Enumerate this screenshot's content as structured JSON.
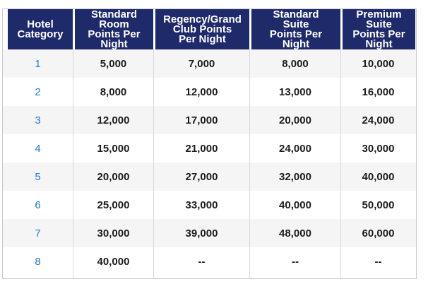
{
  "chart_data": {
    "type": "table",
    "title": "Hotel award points per night by category",
    "columns": [
      "Hotel\nCategory",
      "Standard\nRoom\nPoints Per\nNight",
      "Regency/Grand\nClub Points\nPer Night",
      "Standard\nSuite\nPoints Per\nNight",
      "Premium\nSuite\nPoints Per\nNight"
    ],
    "rows": [
      [
        "1",
        "5,000",
        "7,000",
        "8,000",
        "10,000"
      ],
      [
        "2",
        "8,000",
        "12,000",
        "13,000",
        "16,000"
      ],
      [
        "3",
        "12,000",
        "17,000",
        "20,000",
        "24,000"
      ],
      [
        "4",
        "15,000",
        "21,000",
        "24,000",
        "30,000"
      ],
      [
        "5",
        "20,000",
        "27,000",
        "32,000",
        "40,000"
      ],
      [
        "6",
        "25,000",
        "33,000",
        "40,000",
        "50,000"
      ],
      [
        "7",
        "30,000",
        "39,000",
        "48,000",
        "60,000"
      ],
      [
        "8",
        "40,000",
        "--",
        "--",
        "--"
      ]
    ],
    "empty_value": "--",
    "layout": {
      "header_bg": "#1f2a6b",
      "header_text": "#ffffff",
      "alt_row_bg": "#f5f5f5",
      "row_bg": "#ffffff",
      "category_link_color": "#2579d2",
      "value_text_color": "#1c1c1c",
      "border_color": "#c9c9c9"
    }
  }
}
